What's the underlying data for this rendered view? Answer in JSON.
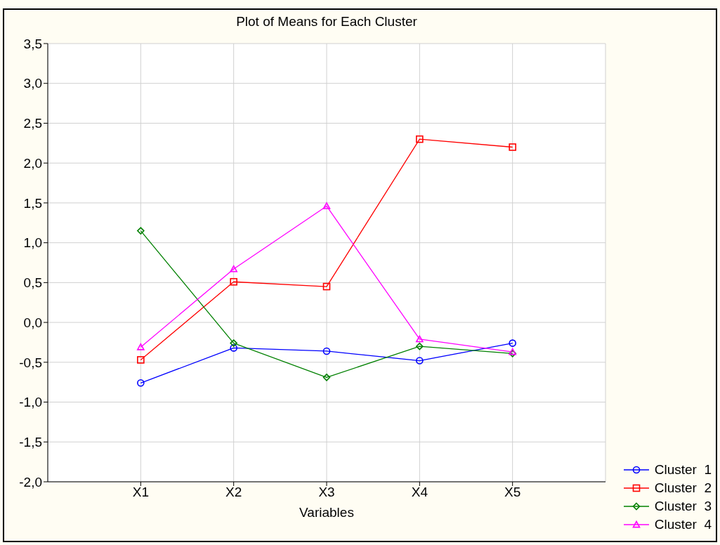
{
  "chart_data": {
    "type": "line",
    "title": "Plot of Means for Each Cluster",
    "xlabel": "Variables",
    "categories": [
      "X1",
      "X2",
      "X3",
      "X4",
      "X5"
    ],
    "series": [
      {
        "name": "Cluster  1",
        "color": "#0000ff",
        "marker": "circle",
        "values": [
          -0.76,
          -0.32,
          -0.36,
          -0.48,
          -0.26
        ]
      },
      {
        "name": "Cluster  2",
        "color": "#ff0000",
        "marker": "square",
        "values": [
          -0.47,
          0.51,
          0.45,
          2.3,
          2.2
        ]
      },
      {
        "name": "Cluster  3",
        "color": "#008000",
        "marker": "diamond",
        "values": [
          1.15,
          -0.26,
          -0.69,
          -0.3,
          -0.39
        ]
      },
      {
        "name": "Cluster  4",
        "color": "#ff00ff",
        "marker": "triangle",
        "values": [
          -0.31,
          0.67,
          1.46,
          -0.21,
          -0.37
        ]
      }
    ],
    "ylim": [
      -2,
      3.5
    ],
    "yticks": [
      {
        "value": -2,
        "label": "-2,0"
      },
      {
        "value": -1.5,
        "label": "-1,5"
      },
      {
        "value": -1,
        "label": "-1,0"
      },
      {
        "value": -0.5,
        "label": "-0,5"
      },
      {
        "value": 0,
        "label": "0,0"
      },
      {
        "value": 0.5,
        "label": "0,5"
      },
      {
        "value": 1,
        "label": "1,0"
      },
      {
        "value": 1.5,
        "label": "1,5"
      },
      {
        "value": 2,
        "label": "2,0"
      },
      {
        "value": 2.5,
        "label": "2,5"
      },
      {
        "value": 3,
        "label": "3,0"
      },
      {
        "value": 3.5,
        "label": "3,5"
      }
    ],
    "grid": true,
    "legend": "bottom right",
    "line_style": "solid"
  }
}
